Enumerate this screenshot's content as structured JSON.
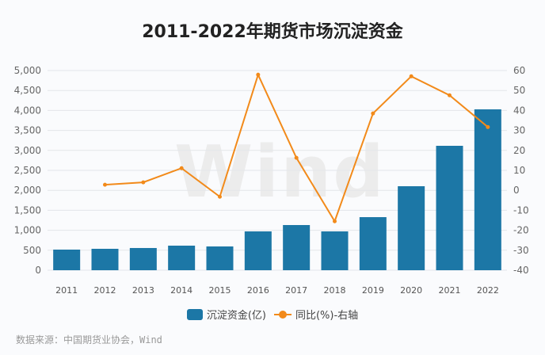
{
  "chart_data": {
    "type": "bar+line",
    "title": "2011-2022年期货市场沉淀资金",
    "categories": [
      "2011",
      "2012",
      "2013",
      "2014",
      "2015",
      "2016",
      "2017",
      "2018",
      "2019",
      "2020",
      "2021",
      "2022"
    ],
    "series": [
      {
        "name": "沉淀资金(亿)",
        "type": "bar",
        "axis": "left",
        "color": "#1c77a6",
        "values": [
          516,
          536,
          556,
          615,
          595,
          972,
          1131,
          972,
          1329,
          2103,
          3115,
          4028
        ]
      },
      {
        "name": "同比(%)-右轴",
        "type": "line",
        "axis": "right",
        "color": "#f28a1a",
        "values": [
          null,
          2.8,
          4.0,
          11.1,
          -3.2,
          57.9,
          16.3,
          -15.5,
          38.5,
          57.1,
          47.6,
          31.7
        ]
      }
    ],
    "left_axis": {
      "range": [
        0,
        5000
      ],
      "ticks": [
        "0",
        "500",
        "1,000",
        "1,500",
        "2,000",
        "2,500",
        "3,000",
        "3,500",
        "4,000",
        "4,500",
        "5,000"
      ]
    },
    "right_axis": {
      "range": [
        -40,
        60
      ],
      "ticks": [
        "-40",
        "-30",
        "-20",
        "-10",
        "0",
        "10",
        "20",
        "30",
        "40",
        "50",
        "60"
      ]
    },
    "grid": true,
    "legend": "bottom"
  },
  "watermark": "Wind",
  "source": "数据来源：中国期货业协会，Wind"
}
